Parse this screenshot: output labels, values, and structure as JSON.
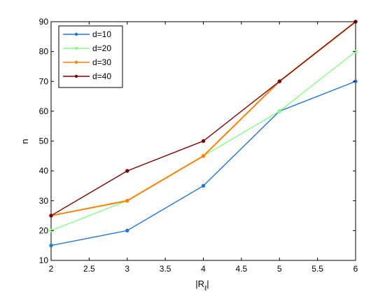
{
  "chart_data": {
    "type": "line",
    "title": "",
    "xlabel": "|R_ℓ|",
    "ylabel": "n",
    "xlim": [
      2,
      6
    ],
    "ylim": [
      10,
      90
    ],
    "x_ticks": [
      "2",
      "2.5",
      "3",
      "3.5",
      "4",
      "4.5",
      "5",
      "5.5",
      "6"
    ],
    "y_ticks": [
      "10",
      "20",
      "30",
      "40",
      "50",
      "60",
      "70",
      "80",
      "90"
    ],
    "grid": false,
    "legend_position": "top-left",
    "series": [
      {
        "name": "d=10",
        "color": "#1f77e0",
        "x": [
          2,
          3,
          4,
          5,
          6
        ],
        "y": [
          15,
          20,
          35,
          60,
          70
        ]
      },
      {
        "name": "d=20",
        "color": "#80ff80",
        "x": [
          2,
          3,
          4,
          5,
          6
        ],
        "y": [
          20,
          30,
          45,
          60,
          80
        ]
      },
      {
        "name": "d=30",
        "color": "#ff8000",
        "x": [
          2,
          3,
          4,
          5,
          6
        ],
        "y": [
          25,
          30,
          45,
          70,
          90
        ]
      },
      {
        "name": "d=40",
        "color": "#800000",
        "x": [
          2,
          3,
          4,
          5,
          6
        ],
        "y": [
          25,
          40,
          50,
          70,
          90
        ]
      }
    ]
  }
}
